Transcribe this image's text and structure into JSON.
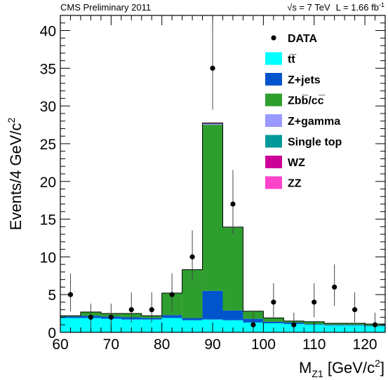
{
  "header": {
    "left": "CMS Preliminary 2011",
    "right_energy": "√s = 7 TeV",
    "right_lumi": "L = 1.66 fb",
    "right_lumi_sup": "-1"
  },
  "axes": {
    "ylabel": "Events/4 GeV/c",
    "ylabel_sup": "2",
    "xlabel_main": "M",
    "xlabel_sub": "Z1",
    "xlabel_unit": " [GeV/c",
    "xlabel_sup": "2",
    "xlabel_close": "]"
  },
  "chart_data": {
    "type": "bar",
    "stacked": true,
    "bin_edges": [
      60,
      64,
      68,
      72,
      76,
      80,
      84,
      88,
      92,
      96,
      100,
      104,
      108,
      112,
      116,
      120,
      124
    ],
    "xlim": [
      60,
      124
    ],
    "ylim": [
      0,
      42
    ],
    "xticks": [
      60,
      70,
      80,
      90,
      100,
      110,
      120
    ],
    "yticks": [
      0,
      5,
      10,
      15,
      20,
      25,
      30,
      35,
      40
    ],
    "series": [
      {
        "name": "tt̅",
        "color": "#00ffff",
        "values": [
          1.9,
          1.9,
          1.8,
          1.7,
          1.7,
          1.9,
          1.6,
          1.7,
          1.6,
          1.3,
          1.2,
          1.1,
          1.0,
          0.9,
          0.9,
          0.8
        ]
      },
      {
        "name": "Z+jets",
        "color": "#0055cc",
        "values": [
          0.2,
          0.3,
          0.3,
          0.3,
          0.2,
          0.4,
          0.3,
          3.8,
          1.3,
          0.5,
          0.2,
          0.2,
          0.1,
          0.1,
          0.1,
          0.1
        ]
      },
      {
        "name": "Zbb̅/cc̅",
        "color": "#2e9f2e",
        "values": [
          0.1,
          0.5,
          0.4,
          0.5,
          0.3,
          2.9,
          6.4,
          22.0,
          11.0,
          1.0,
          0.5,
          0.2,
          0.3,
          0.2,
          0.2,
          0.2
        ]
      },
      {
        "name": "Z+gamma",
        "color": "#9999ff",
        "values": [
          0,
          0,
          0,
          0,
          0,
          0,
          0,
          0.1,
          0.05,
          0,
          0,
          0,
          0,
          0,
          0,
          0
        ]
      },
      {
        "name": "Single top",
        "color": "#009999",
        "values": [
          0,
          0,
          0,
          0,
          0,
          0,
          0,
          0.05,
          0,
          0,
          0,
          0,
          0,
          0,
          0,
          0
        ]
      },
      {
        "name": "WZ",
        "color": "#cc0099",
        "values": [
          0,
          0,
          0,
          0,
          0,
          0,
          0,
          0.05,
          0,
          0,
          0,
          0,
          0,
          0,
          0,
          0
        ]
      },
      {
        "name": "ZZ",
        "color": "#ff44cc",
        "values": [
          0,
          0,
          0,
          0,
          0,
          0,
          0,
          0.05,
          0,
          0,
          0,
          0,
          0,
          0,
          0,
          0
        ]
      }
    ],
    "data": {
      "name": "DATA",
      "points": [
        {
          "x": 62,
          "y": 5,
          "lo": 2.8,
          "hi": 7.8
        },
        {
          "x": 66,
          "y": 2,
          "lo": 0.7,
          "hi": 3.8
        },
        {
          "x": 70,
          "y": 2,
          "lo": 0.7,
          "hi": 3.8
        },
        {
          "x": 74,
          "y": 3,
          "lo": 1.3,
          "hi": 5.3
        },
        {
          "x": 78,
          "y": 3,
          "lo": 1.3,
          "hi": 5.3
        },
        {
          "x": 82,
          "y": 5,
          "lo": 2.8,
          "hi": 7.8
        },
        {
          "x": 86,
          "y": 10,
          "lo": 6.8,
          "hi": 13.5
        },
        {
          "x": 90,
          "y": 35,
          "lo": 29.5,
          "hi": 41.5
        },
        {
          "x": 94,
          "y": 17,
          "lo": 13.0,
          "hi": 21.5
        },
        {
          "x": 98,
          "y": 1,
          "lo": 0.2,
          "hi": 2.6
        },
        {
          "x": 102,
          "y": 4,
          "lo": 2.0,
          "hi": 6.5
        },
        {
          "x": 106,
          "y": 1,
          "lo": 0.2,
          "hi": 2.6
        },
        {
          "x": 110,
          "y": 4,
          "lo": 2.0,
          "hi": 6.5
        },
        {
          "x": 114,
          "y": 6,
          "lo": 3.5,
          "hi": 9.0
        },
        {
          "x": 118,
          "y": 3,
          "lo": 1.3,
          "hi": 5.3
        },
        {
          "x": 122,
          "y": 1,
          "lo": 0.2,
          "hi": 2.6
        }
      ]
    },
    "legend_position": "top-right",
    "grid": false
  }
}
